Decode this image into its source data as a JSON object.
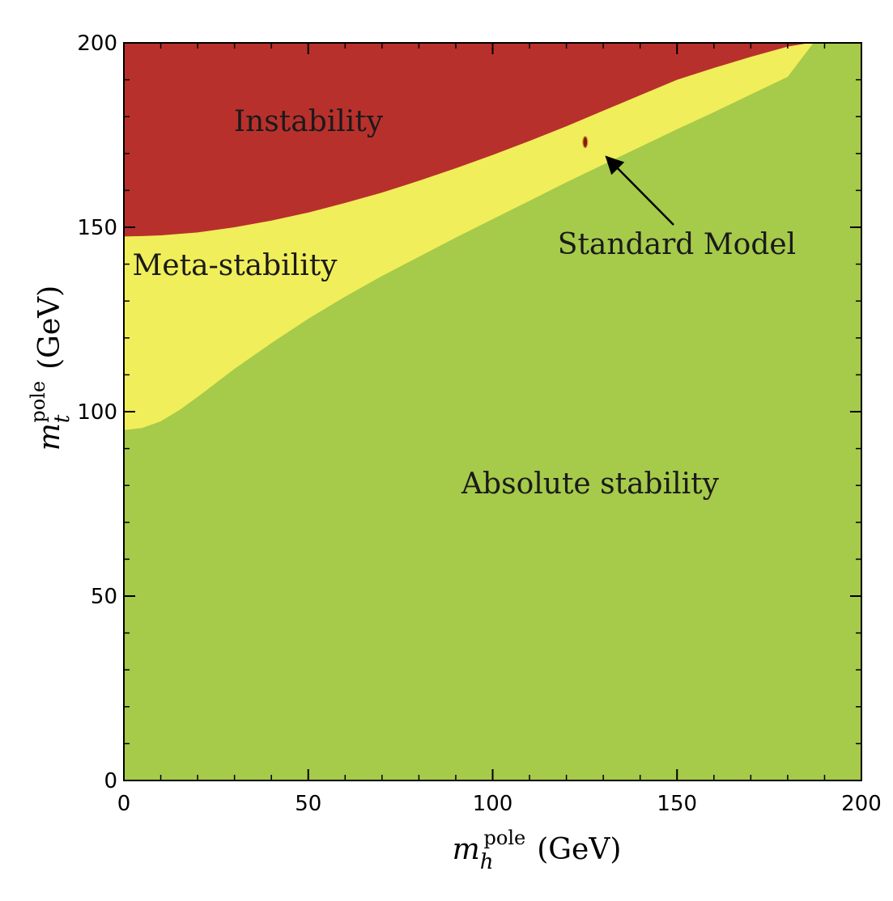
{
  "chart_data": {
    "type": "area",
    "title": "",
    "xlabel": {
      "symbol": "m",
      "sub": "h",
      "sup": "pole",
      "unit": "(GeV)"
    },
    "ylabel": {
      "symbol": "m",
      "sub": "t",
      "sup": "pole",
      "unit": "(GeV)"
    },
    "xlim": [
      0,
      200
    ],
    "ylim": [
      0,
      200
    ],
    "x_ticks": [
      "0",
      "50",
      "100",
      "150",
      "200"
    ],
    "y_ticks": [
      "0",
      "50",
      "100",
      "150",
      "200"
    ],
    "grid": false,
    "colors": {
      "instability": "#b8302c",
      "meta_stability": "#f0ee5a",
      "absolute_stability": "#a6ca4a",
      "standard_model_point": "#8a1a12"
    },
    "regions": [
      {
        "name": "Instability",
        "position": "top"
      },
      {
        "name": "Meta-stability",
        "position": "middle"
      },
      {
        "name": "Absolute stability",
        "position": "bottom"
      }
    ],
    "instability_boundary": {
      "x": [
        0,
        5,
        10,
        20,
        30,
        40,
        50,
        60,
        70,
        80,
        90,
        100,
        110,
        120,
        130,
        140,
        150,
        160,
        170,
        180,
        186
      ],
      "y": [
        147.5,
        147.6,
        147.8,
        148.6,
        150.0,
        151.8,
        154.0,
        156.6,
        159.4,
        162.6,
        166.0,
        169.6,
        173.4,
        177.4,
        181.6,
        185.8,
        190.0,
        193.2,
        196.2,
        199.0,
        200
      ]
    },
    "stability_boundary": {
      "x": [
        0,
        5,
        10,
        15,
        20,
        25,
        30,
        40,
        50,
        60,
        70,
        80,
        90,
        100,
        110,
        120,
        130,
        140,
        150,
        160,
        170,
        180,
        187
      ],
      "y": [
        95.0,
        95.6,
        97.4,
        100.4,
        104.0,
        107.8,
        111.6,
        118.6,
        125.2,
        131.2,
        136.8,
        142.0,
        147.2,
        152.2,
        157.2,
        162.2,
        167.0,
        171.8,
        176.6,
        181.2,
        186.0,
        190.8,
        200
      ]
    },
    "annotations": [
      {
        "text": "Standard Model",
        "point": {
          "x": 125.1,
          "y": 173.1
        }
      }
    ]
  }
}
